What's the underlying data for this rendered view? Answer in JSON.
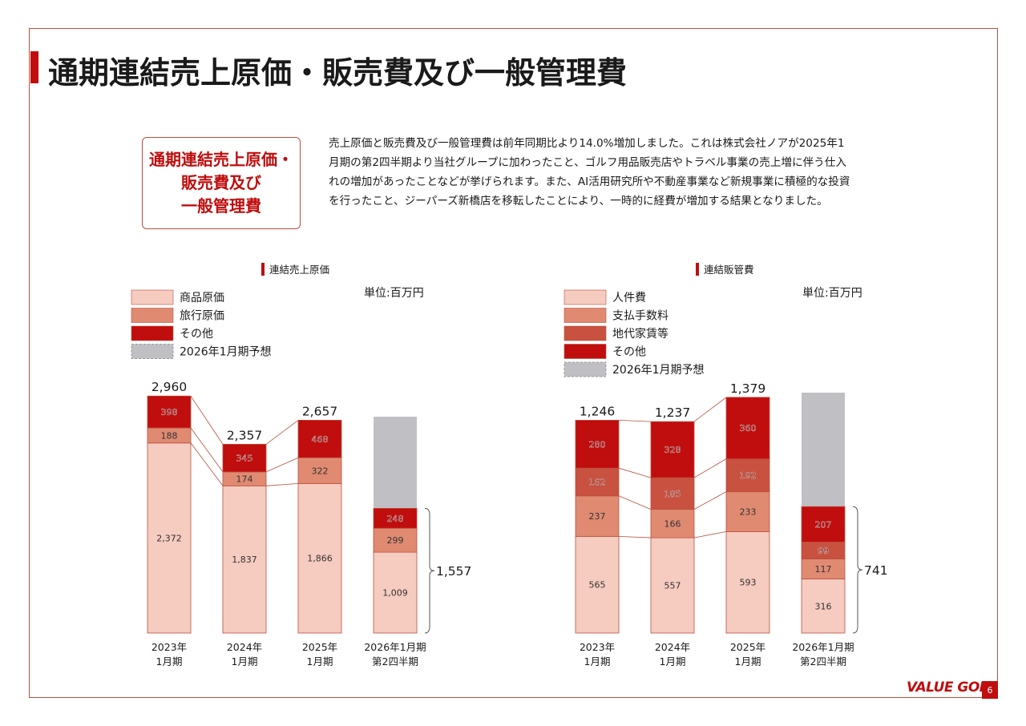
{
  "page": {
    "title": "通期連結売上原価・販売費及び一般管理費",
    "summary_label_lines": [
      "通期連結売上原価・",
      "販売費及び",
      "一般管理費"
    ],
    "summary_lines": [
      "売上原価と販売費及び一般管理費は前年同期比より14.0%増加しました。これは株式会社ノアが2025年1",
      "月期の第2四半期より当社グループに加わったこと、ゴルフ用品販売店やトラベル事業の売上増に伴う仕入",
      "れの増加があったことなどが挙げられます。また、AI活用研究所や不動産事業など新規事業に積極的な投資",
      "を行ったこと、ジーパーズ新橋店を移転したことにより、一時的に経費が増加する結果となりました。"
    ],
    "brand": "VALUE GOLF",
    "page_number": "6"
  },
  "chart_data": [
    {
      "type": "bar",
      "stacked": true,
      "title": "連結売上原価",
      "unit": "単位:百万円",
      "categories": [
        [
          "2023年",
          "1月期"
        ],
        [
          "2024年",
          "1月期"
        ],
        [
          "2025年",
          "1月期"
        ],
        [
          "2026年1月期",
          "第2四半期"
        ]
      ],
      "series": [
        {
          "name": "商品原価",
          "color": "#f6cbc0",
          "values": [
            2372,
            1837,
            1866,
            1009
          ]
        },
        {
          "name": "旅行原価",
          "color": "#e08a72",
          "values": [
            188,
            174,
            322,
            299
          ]
        },
        {
          "name": "その他",
          "color": "#c00d0d",
          "values": [
            398,
            345,
            468,
            248
          ]
        }
      ],
      "forecast": {
        "name": "2026年1月期予想",
        "color": "#c0c0c4",
        "category_index": 3
      },
      "totals": [
        "2,960",
        "2,357",
        "2,657"
      ],
      "bracket_label": "1,557",
      "ylim": [
        0,
        3200
      ],
      "legend_position": "top-left"
    },
    {
      "type": "bar",
      "stacked": true,
      "title": "連結販管費",
      "unit": "単位:百万円",
      "categories": [
        [
          "2023年",
          "1月期"
        ],
        [
          "2024年",
          "1月期"
        ],
        [
          "2025年",
          "1月期"
        ],
        [
          "2026年1月期",
          "第2四半期"
        ]
      ],
      "series": [
        {
          "name": "人件費",
          "color": "#f6cbc0",
          "values": [
            565,
            557,
            593,
            316
          ]
        },
        {
          "name": "支払手数料",
          "color": "#e08a72",
          "values": [
            237,
            166,
            233,
            117
          ]
        },
        {
          "name": "地代家賃等",
          "color": "#c9513f",
          "values": [
            162,
            185,
            192,
            99
          ]
        },
        {
          "name": "その他",
          "color": "#c00d0d",
          "values": [
            280,
            328,
            360,
            207
          ]
        }
      ],
      "forecast": {
        "name": "2026年1月期予想",
        "color": "#c0c0c4",
        "category_index": 3
      },
      "totals": [
        "1,246",
        "1,237",
        "1,379"
      ],
      "bracket_label": "741",
      "ylim": [
        0,
        1400
      ],
      "legend_position": "top-left"
    }
  ]
}
